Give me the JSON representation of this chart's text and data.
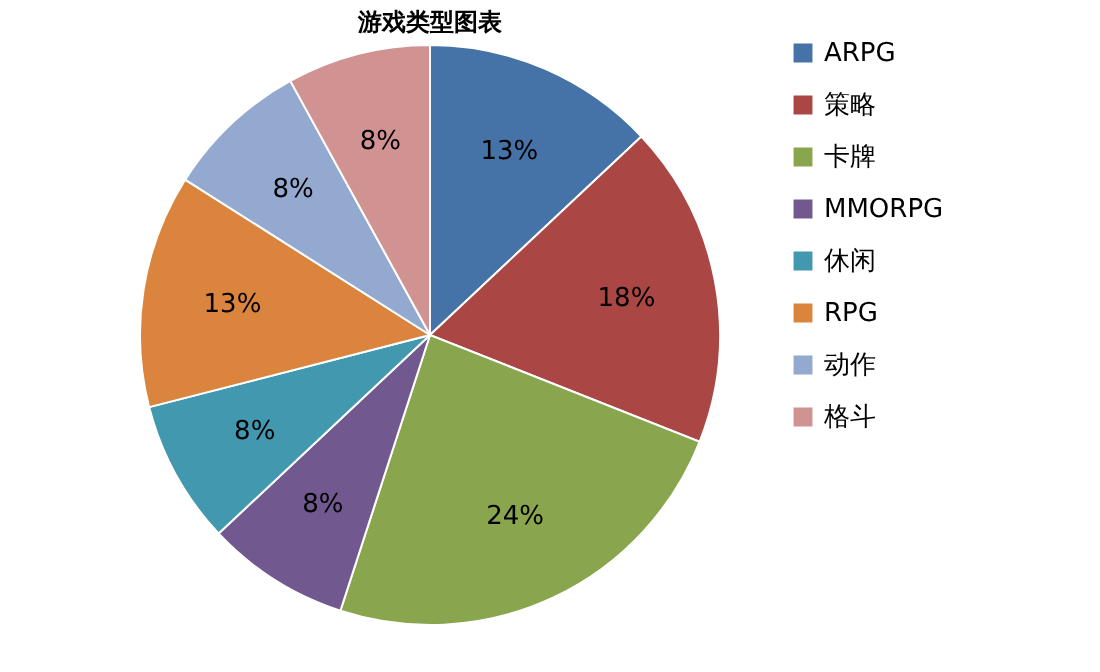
{
  "chart_data": {
    "type": "pie",
    "title": "游戏类型图表",
    "categories": [
      "ARPG",
      "策略",
      "卡牌",
      "MMORPG",
      "休闲",
      "RPG",
      "动作",
      "格斗"
    ],
    "values": [
      13,
      18,
      24,
      8,
      8,
      13,
      8,
      8
    ],
    "colors": [
      "#4572a7",
      "#aa4643",
      "#89a54e",
      "#71588f",
      "#4198af",
      "#db843d",
      "#93a9cf",
      "#d19392"
    ],
    "value_labels": [
      "13%",
      "18%",
      "24%",
      "8%",
      "8%",
      "13%",
      "8%",
      "8%"
    ],
    "legend": "right"
  }
}
